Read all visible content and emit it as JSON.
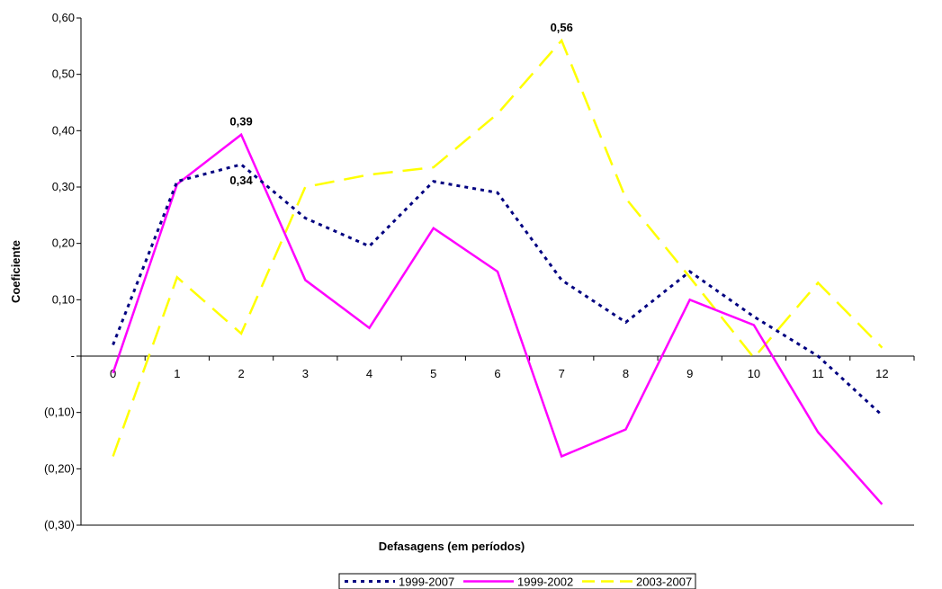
{
  "chart_data": {
    "type": "line",
    "title": "",
    "xlabel": "Defasagens (em períodos)",
    "ylabel": "Coeficiente",
    "x": [
      0,
      1,
      2,
      3,
      4,
      5,
      6,
      7,
      8,
      9,
      10,
      11,
      12
    ],
    "x_tick_labels": [
      "0",
      "1",
      "2",
      "3",
      "4",
      "5",
      "6",
      "7",
      "8",
      "9",
      "10",
      "11",
      "12"
    ],
    "ylim": [
      -0.3,
      0.6
    ],
    "y_ticks": [
      0.6,
      0.5,
      0.4,
      0.3,
      0.2,
      0.1,
      0.0,
      -0.1,
      -0.2,
      -0.3
    ],
    "y_tick_labels": [
      "0,60",
      "0,50",
      "0,40",
      "0,30",
      "0,20",
      "0,10",
      "-",
      "(0,10)",
      "(0,20)",
      "(0,30)"
    ],
    "grid": false,
    "legend_position": "bottom",
    "series": [
      {
        "name": "1999-2007",
        "color": "#000080",
        "style": "dotted",
        "values": [
          0.02,
          0.31,
          0.34,
          0.245,
          0.195,
          0.31,
          0.29,
          0.135,
          0.06,
          0.15,
          0.07,
          0.0,
          -0.105
        ]
      },
      {
        "name": "1999-2002",
        "color": "#FF00FF",
        "style": "solid",
        "values": [
          -0.03,
          0.305,
          0.393,
          0.135,
          0.05,
          0.227,
          0.15,
          -0.178,
          -0.13,
          0.1,
          0.055,
          -0.135,
          -0.263
        ]
      },
      {
        "name": "2003-2007",
        "color": "#FFFF00",
        "style": "dashed",
        "values": [
          -0.178,
          0.14,
          0.04,
          0.3,
          0.322,
          0.335,
          0.43,
          0.56,
          0.28,
          0.14,
          -0.003,
          0.13,
          0.015
        ]
      }
    ],
    "annotations": [
      {
        "text": "0,39",
        "series": "1999-2002",
        "x": 2,
        "y": 0.393,
        "position": "above"
      },
      {
        "text": "0,34",
        "series": "1999-2007",
        "x": 2,
        "y": 0.34,
        "position": "below"
      },
      {
        "text": "0,56",
        "series": "2003-2007",
        "x": 7,
        "y": 0.56,
        "position": "above"
      }
    ]
  }
}
